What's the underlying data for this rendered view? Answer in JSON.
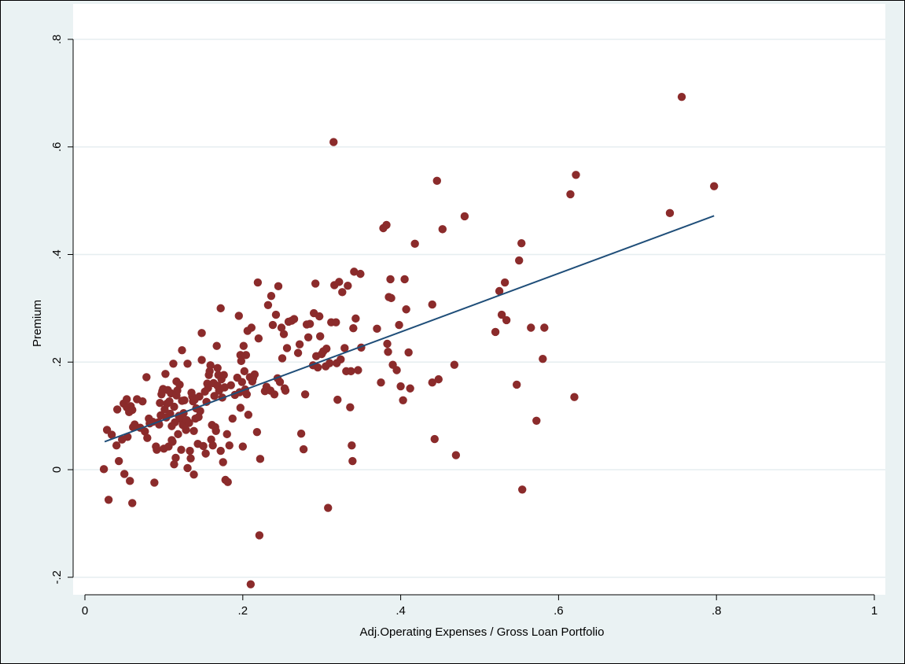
{
  "chart_data": {
    "type": "scatter",
    "xlabel": "Adj.Operating Expenses / Gross Loan Portfolio",
    "ylabel": "Premium",
    "xlim": [
      0,
      1
    ],
    "ylim": [
      -0.2,
      0.8
    ],
    "x_ticks": [
      {
        "value": 0,
        "label": "0"
      },
      {
        "value": 0.2,
        "label": ".2"
      },
      {
        "value": 0.4,
        "label": ".4"
      },
      {
        "value": 0.6,
        "label": ".6"
      },
      {
        "value": 0.8,
        "label": ".8"
      },
      {
        "value": 1,
        "label": "1"
      }
    ],
    "y_ticks": [
      {
        "value": -0.2,
        "label": "-.2"
      },
      {
        "value": 0,
        "label": "0"
      },
      {
        "value": 0.2,
        "label": ".2"
      },
      {
        "value": 0.4,
        "label": ".4"
      },
      {
        "value": 0.6,
        "label": ".6"
      },
      {
        "value": 0.8,
        "label": ".8"
      }
    ],
    "grid": "horizontal",
    "legend": "none",
    "colors": {
      "marker": "#8b2b2b",
      "fit_line": "#1f4e79",
      "plot_bg": "#ffffff",
      "outer_bg": "#eaf2f3",
      "grid": "#e6eef0"
    },
    "fit_line": {
      "x": [
        0.025,
        0.797
      ],
      "y": [
        0.052,
        0.472
      ]
    },
    "points": [
      [
        0.024,
        0.001
      ],
      [
        0.028,
        0.074
      ],
      [
        0.03,
        -0.056
      ],
      [
        0.034,
        0.065
      ],
      [
        0.04,
        0.045
      ],
      [
        0.041,
        0.112
      ],
      [
        0.043,
        0.016
      ],
      [
        0.047,
        0.056
      ],
      [
        0.049,
        0.123
      ],
      [
        0.05,
        -0.008
      ],
      [
        0.053,
        0.131
      ],
      [
        0.053,
        0.116
      ],
      [
        0.054,
        0.061
      ],
      [
        0.056,
        0.107
      ],
      [
        0.057,
        -0.021
      ],
      [
        0.058,
        0.118
      ],
      [
        0.06,
        0.111
      ],
      [
        0.06,
        -0.062
      ],
      [
        0.061,
        0.079
      ],
      [
        0.063,
        0.084
      ],
      [
        0.066,
        0.131
      ],
      [
        0.07,
        0.078
      ],
      [
        0.073,
        0.127
      ],
      [
        0.076,
        0.071
      ],
      [
        0.078,
        0.172
      ],
      [
        0.079,
        0.059
      ],
      [
        0.081,
        0.095
      ],
      [
        0.082,
        0.086
      ],
      [
        0.086,
        0.089
      ],
      [
        0.088,
        -0.024
      ],
      [
        0.09,
        0.043
      ],
      [
        0.091,
        0.037
      ],
      [
        0.093,
        0.088
      ],
      [
        0.094,
        0.084
      ],
      [
        0.095,
        0.124
      ],
      [
        0.096,
        0.101
      ],
      [
        0.097,
        0.14
      ],
      [
        0.098,
        0.146
      ],
      [
        0.099,
        0.15
      ],
      [
        0.1,
        0.039
      ],
      [
        0.101,
        0.112
      ],
      [
        0.102,
        0.178
      ],
      [
        0.103,
        0.097
      ],
      [
        0.104,
        0.123
      ],
      [
        0.105,
        0.148
      ],
      [
        0.106,
        0.043
      ],
      [
        0.107,
        0.127
      ],
      [
        0.108,
        0.104
      ],
      [
        0.109,
        0.142
      ],
      [
        0.11,
        0.081
      ],
      [
        0.11,
        0.055
      ],
      [
        0.111,
        0.052
      ],
      [
        0.112,
        0.197
      ],
      [
        0.113,
        0.01
      ],
      [
        0.113,
        0.117
      ],
      [
        0.114,
        0.088
      ],
      [
        0.115,
        0.022
      ],
      [
        0.116,
        0.164
      ],
      [
        0.116,
        0.138
      ],
      [
        0.117,
        0.147
      ],
      [
        0.118,
        0.066
      ],
      [
        0.119,
        0.1
      ],
      [
        0.12,
        0.158
      ],
      [
        0.121,
        0.094
      ],
      [
        0.122,
        0.037
      ],
      [
        0.123,
        0.128
      ],
      [
        0.123,
        0.222
      ],
      [
        0.124,
        0.083
      ],
      [
        0.125,
        0.105
      ],
      [
        0.126,
        0.129
      ],
      [
        0.128,
        0.074
      ],
      [
        0.129,
        0.092
      ],
      [
        0.13,
        0.003
      ],
      [
        0.13,
        0.197
      ],
      [
        0.132,
        0.087
      ],
      [
        0.133,
        0.035
      ],
      [
        0.134,
        0.021
      ],
      [
        0.135,
        0.143
      ],
      [
        0.136,
        0.136
      ],
      [
        0.137,
        0.127
      ],
      [
        0.138,
        -0.009
      ],
      [
        0.138,
        0.072
      ],
      [
        0.139,
        0.13
      ],
      [
        0.14,
        0.095
      ],
      [
        0.141,
        0.114
      ],
      [
        0.143,
        0.048
      ],
      [
        0.144,
        0.098
      ],
      [
        0.145,
        0.136
      ],
      [
        0.146,
        0.109
      ],
      [
        0.148,
        0.204
      ],
      [
        0.148,
        0.254
      ],
      [
        0.15,
        0.044
      ],
      [
        0.152,
        0.145
      ],
      [
        0.153,
        0.03
      ],
      [
        0.154,
        0.126
      ],
      [
        0.155,
        0.16
      ],
      [
        0.156,
        0.152
      ],
      [
        0.157,
        0.176
      ],
      [
        0.158,
        0.183
      ],
      [
        0.159,
        0.194
      ],
      [
        0.16,
        0.056
      ],
      [
        0.161,
        0.083
      ],
      [
        0.162,
        0.045
      ],
      [
        0.163,
        0.161
      ],
      [
        0.164,
        0.137
      ],
      [
        0.165,
        0.079
      ],
      [
        0.166,
        0.072
      ],
      [
        0.167,
        0.23
      ],
      [
        0.168,
        0.189
      ],
      [
        0.168,
        0.156
      ],
      [
        0.169,
        0.176
      ],
      [
        0.17,
        0.147
      ],
      [
        0.172,
        0.035
      ],
      [
        0.172,
        0.3
      ],
      [
        0.173,
        0.168
      ],
      [
        0.174,
        0.134
      ],
      [
        0.175,
        0.014
      ],
      [
        0.176,
        0.176
      ],
      [
        0.177,
        0.153
      ],
      [
        0.178,
        -0.019
      ],
      [
        0.18,
        0.066
      ],
      [
        0.181,
        -0.023
      ],
      [
        0.183,
        0.045
      ],
      [
        0.185,
        0.157
      ],
      [
        0.187,
        0.095
      ],
      [
        0.19,
        0.139
      ],
      [
        0.193,
        0.171
      ],
      [
        0.195,
        0.286
      ],
      [
        0.196,
        0.144
      ],
      [
        0.197,
        0.213
      ],
      [
        0.197,
        0.115
      ],
      [
        0.198,
        0.202
      ],
      [
        0.199,
        0.163
      ],
      [
        0.2,
        0.043
      ],
      [
        0.201,
        0.23
      ],
      [
        0.202,
        0.183
      ],
      [
        0.203,
        0.149
      ],
      [
        0.204,
        0.213
      ],
      [
        0.205,
        0.14
      ],
      [
        0.206,
        0.258
      ],
      [
        0.207,
        0.102
      ],
      [
        0.209,
        0.172
      ],
      [
        0.21,
        -0.213
      ],
      [
        0.211,
        0.264
      ],
      [
        0.212,
        0.164
      ],
      [
        0.213,
        0.17
      ],
      [
        0.215,
        0.177
      ],
      [
        0.218,
        0.07
      ],
      [
        0.219,
        0.348
      ],
      [
        0.22,
        0.244
      ],
      [
        0.221,
        -0.122
      ],
      [
        0.222,
        0.02
      ],
      [
        0.228,
        0.146
      ],
      [
        0.23,
        0.154
      ],
      [
        0.232,
        0.306
      ],
      [
        0.235,
        0.147
      ],
      [
        0.236,
        0.323
      ],
      [
        0.238,
        0.269
      ],
      [
        0.24,
        0.14
      ],
      [
        0.242,
        0.288
      ],
      [
        0.244,
        0.17
      ],
      [
        0.245,
        0.341
      ],
      [
        0.247,
        0.163
      ],
      [
        0.249,
        0.264
      ],
      [
        0.25,
        0.207
      ],
      [
        0.252,
        0.252
      ],
      [
        0.253,
        0.151
      ],
      [
        0.254,
        0.147
      ],
      [
        0.256,
        0.226
      ],
      [
        0.258,
        0.275
      ],
      [
        0.262,
        0.277
      ],
      [
        0.265,
        0.28
      ],
      [
        0.27,
        0.217
      ],
      [
        0.272,
        0.233
      ],
      [
        0.274,
        0.067
      ],
      [
        0.277,
        0.038
      ],
      [
        0.279,
        0.14
      ],
      [
        0.281,
        0.27
      ],
      [
        0.283,
        0.246
      ],
      [
        0.285,
        0.271
      ],
      [
        0.289,
        0.194
      ],
      [
        0.29,
        0.291
      ],
      [
        0.292,
        0.346
      ],
      [
        0.293,
        0.211
      ],
      [
        0.295,
        0.19
      ],
      [
        0.297,
        0.285
      ],
      [
        0.298,
        0.248
      ],
      [
        0.3,
        0.215
      ],
      [
        0.302,
        0.22
      ],
      [
        0.305,
        0.192
      ],
      [
        0.306,
        0.225
      ],
      [
        0.308,
        -0.071
      ],
      [
        0.31,
        0.198
      ],
      [
        0.312,
        0.274
      ],
      [
        0.315,
        0.609
      ],
      [
        0.316,
        0.343
      ],
      [
        0.318,
        0.274
      ],
      [
        0.319,
        0.198
      ],
      [
        0.32,
        0.13
      ],
      [
        0.322,
        0.349
      ],
      [
        0.324,
        0.205
      ],
      [
        0.326,
        0.33
      ],
      [
        0.329,
        0.226
      ],
      [
        0.331,
        0.183
      ],
      [
        0.333,
        0.342
      ],
      [
        0.336,
        0.116
      ],
      [
        0.337,
        0.183
      ],
      [
        0.338,
        0.045
      ],
      [
        0.339,
        0.016
      ],
      [
        0.34,
        0.263
      ],
      [
        0.341,
        0.368
      ],
      [
        0.343,
        0.281
      ],
      [
        0.346,
        0.185
      ],
      [
        0.349,
        0.364
      ],
      [
        0.35,
        0.227
      ],
      [
        0.37,
        0.262
      ],
      [
        0.375,
        0.162
      ],
      [
        0.378,
        0.449
      ],
      [
        0.382,
        0.455
      ],
      [
        0.383,
        0.234
      ],
      [
        0.384,
        0.219
      ],
      [
        0.385,
        0.321
      ],
      [
        0.387,
        0.354
      ],
      [
        0.388,
        0.319
      ],
      [
        0.39,
        0.195
      ],
      [
        0.395,
        0.185
      ],
      [
        0.398,
        0.269
      ],
      [
        0.4,
        0.155
      ],
      [
        0.403,
        0.129
      ],
      [
        0.405,
        0.354
      ],
      [
        0.407,
        0.298
      ],
      [
        0.41,
        0.218
      ],
      [
        0.412,
        0.151
      ],
      [
        0.418,
        0.42
      ],
      [
        0.44,
        0.307
      ],
      [
        0.44,
        0.162
      ],
      [
        0.443,
        0.057
      ],
      [
        0.446,
        0.537
      ],
      [
        0.448,
        0.168
      ],
      [
        0.453,
        0.447
      ],
      [
        0.468,
        0.195
      ],
      [
        0.47,
        0.027
      ],
      [
        0.481,
        0.471
      ],
      [
        0.52,
        0.256
      ],
      [
        0.525,
        0.332
      ],
      [
        0.528,
        0.288
      ],
      [
        0.532,
        0.348
      ],
      [
        0.534,
        0.278
      ],
      [
        0.547,
        0.158
      ],
      [
        0.55,
        0.389
      ],
      [
        0.553,
        0.421
      ],
      [
        0.554,
        -0.037
      ],
      [
        0.565,
        0.264
      ],
      [
        0.572,
        0.091
      ],
      [
        0.58,
        0.206
      ],
      [
        0.582,
        0.264
      ],
      [
        0.615,
        0.512
      ],
      [
        0.62,
        0.135
      ],
      [
        0.622,
        0.548
      ],
      [
        0.741,
        0.477
      ],
      [
        0.756,
        0.693
      ],
      [
        0.797,
        0.527
      ]
    ]
  }
}
